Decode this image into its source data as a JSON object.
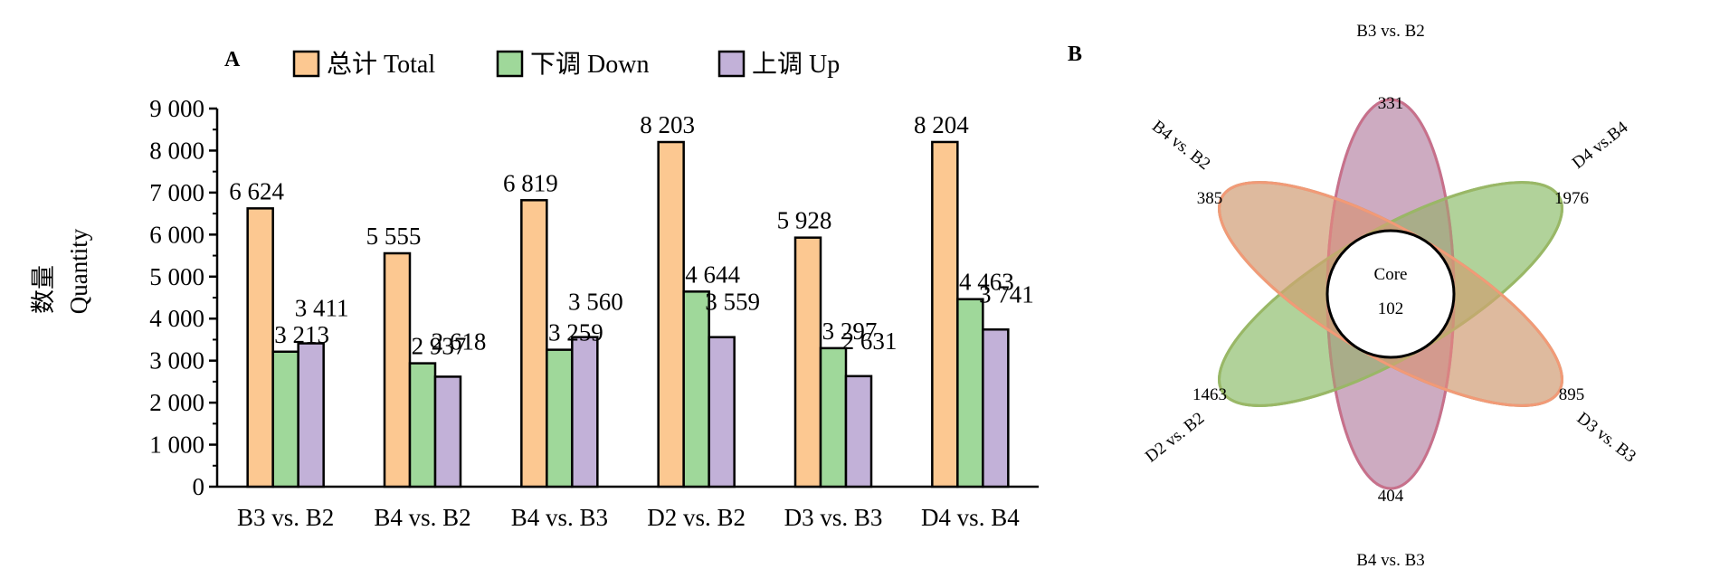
{
  "chart_data": [
    {
      "type": "bar",
      "panel": "A",
      "title": "",
      "xlabel": "",
      "ylabel_cn": "数量",
      "ylabel": "Quantity",
      "ylim": [
        0,
        9000
      ],
      "yticks": [
        "0",
        "1 000",
        "2 000",
        "3 000",
        "4 000",
        "5 000",
        "6 000",
        "7 000",
        "8 000",
        "9 000"
      ],
      "ytick_values": [
        0,
        1000,
        2000,
        3000,
        4000,
        5000,
        6000,
        7000,
        8000,
        9000
      ],
      "categories": [
        "B3 vs. B2",
        "B4 vs. B2",
        "B4 vs. B3",
        "D2 vs. B2",
        "D3 vs. B3",
        "D4 vs. B4"
      ],
      "series": [
        {
          "name": "总计 Total",
          "color": "#FCC891",
          "values": [
            6624,
            5555,
            6819,
            8203,
            5928,
            8204
          ],
          "labels": [
            "6 624",
            "5 555",
            "6 819",
            "8 203",
            "5 928",
            "8 204"
          ]
        },
        {
          "name": "下调 Down",
          "color": "#9FD89A",
          "values": [
            3213,
            2937,
            3259,
            4644,
            3297,
            4463
          ],
          "labels": [
            "3 213",
            "2 937",
            "3 259",
            "4 644",
            "3 297",
            "4 463"
          ]
        },
        {
          "name": "上调 Up",
          "color": "#C2B1D8",
          "values": [
            3411,
            2618,
            3560,
            3559,
            2631,
            3741
          ],
          "labels": [
            "3 411",
            "2 618",
            "3 560",
            "3 559",
            "2 631",
            "3 741"
          ]
        }
      ],
      "legend_position": "top",
      "grid": false
    },
    {
      "type": "venn",
      "panel": "B",
      "core_label": "Core",
      "core_value": 102,
      "sets": [
        {
          "name": "B3 vs. B2",
          "unique": 331,
          "color": "#8E9DC8"
        },
        {
          "name": "D4 vs.B4",
          "unique": 1976,
          "color": "#6CC36A"
        },
        {
          "name": "D3 vs. B3",
          "unique": 895,
          "color": "#8C8F5C"
        },
        {
          "name": "B4 vs. B3",
          "unique": 404,
          "color": "#C8708A"
        },
        {
          "name": "D2 vs. B2",
          "unique": 1463,
          "color": "#9AB766"
        },
        {
          "name": "B4 vs. B2",
          "unique": 385,
          "color": "#F29A77"
        }
      ]
    }
  ]
}
